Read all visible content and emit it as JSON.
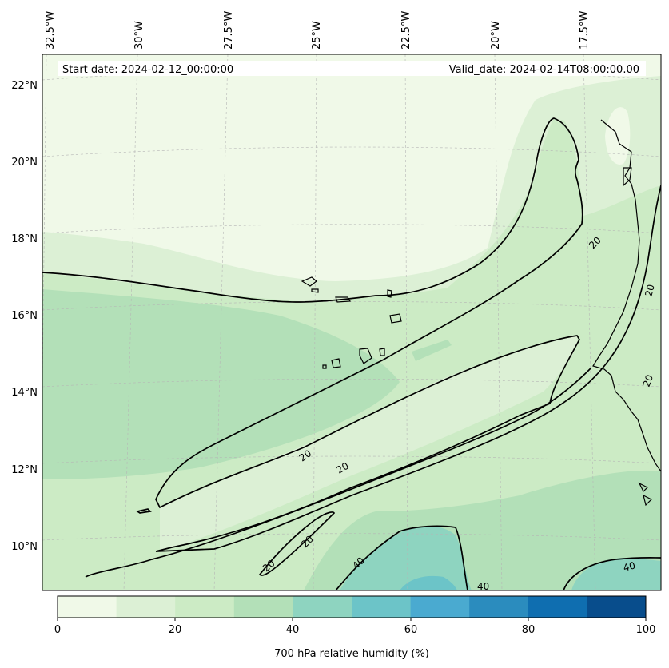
{
  "header": {
    "start_date": "Start date: 2024-02-12_00:00:00",
    "valid_date": "Valid_date: 2024-02-14T08:00:00.00"
  },
  "map": {
    "longitude_labels": [
      "32.5°W",
      "30°W",
      "27.5°W",
      "25°W",
      "22.5°W",
      "20°W",
      "17.5°W"
    ],
    "latitude_labels": [
      "22°N",
      "20°N",
      "18°N",
      "16°N",
      "14°N",
      "12°N",
      "10°N"
    ],
    "contour_labels": [
      "20",
      "20",
      "20",
      "20",
      "20",
      "20",
      "20",
      "40",
      "40",
      "40"
    ]
  },
  "colorbar": {
    "label": "700 hPa relative humidity (%)",
    "tick_labels": [
      "0",
      "20",
      "40",
      "60",
      "80",
      "100"
    ],
    "levels": [
      0,
      10,
      20,
      30,
      40,
      50,
      60,
      70,
      80,
      90,
      100
    ],
    "colors": [
      "#f0f9e8",
      "#dcf0d5",
      "#ccebc5",
      "#b3e0b8",
      "#8ed4c0",
      "#6cc4c8",
      "#4aaad0",
      "#2b8cbe",
      "#0f6eb0",
      "#084d8c"
    ]
  }
}
